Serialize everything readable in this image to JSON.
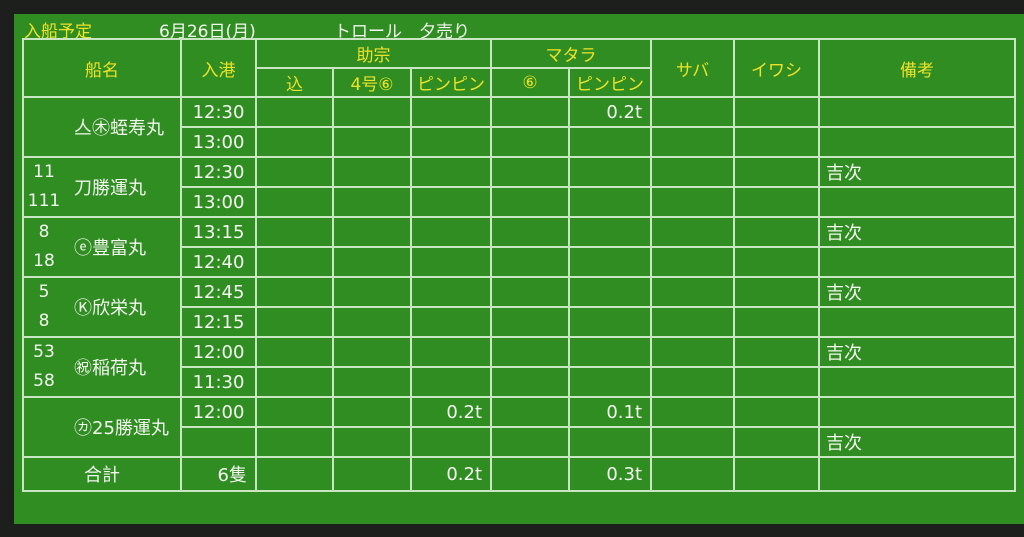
{
  "title": {
    "label": "入船予定",
    "date": "6月26日(月)",
    "type": "トロール　夕売り"
  },
  "headers": {
    "ship": "船名",
    "arrival": "入港",
    "sukesou": "助宗",
    "matara": "マタラ",
    "saba": "サバ",
    "iwashi": "イワシ",
    "remarks": "備考",
    "sub": [
      "込",
      "4号⑥",
      "ピンピン",
      "⑥",
      "ピンピン"
    ]
  },
  "ships": [
    {
      "codes": [
        "",
        ""
      ],
      "name": "亼㊍蛭寿丸",
      "times": [
        "12:30",
        "13:00"
      ],
      "cells": [
        [
          "",
          "",
          "",
          "",
          "0.2t",
          "",
          "",
          ""
        ],
        [
          "",
          "",
          "",
          "",
          "",
          "",
          "",
          ""
        ]
      ]
    },
    {
      "codes": [
        "11",
        "111"
      ],
      "name": "刀勝運丸",
      "times": [
        "12:30",
        "13:00"
      ],
      "cells": [
        [
          "",
          "",
          "",
          "",
          "",
          "",
          "",
          "吉次"
        ],
        [
          "",
          "",
          "",
          "",
          "",
          "",
          "",
          ""
        ]
      ]
    },
    {
      "codes": [
        "8",
        "18"
      ],
      "name": "ⓔ豊富丸",
      "times": [
        "13:15",
        "12:40"
      ],
      "cells": [
        [
          "",
          "",
          "",
          "",
          "",
          "",
          "",
          "吉次"
        ],
        [
          "",
          "",
          "",
          "",
          "",
          "",
          "",
          ""
        ]
      ]
    },
    {
      "codes": [
        "5",
        "8"
      ],
      "name": "Ⓚ欣栄丸",
      "times": [
        "12:45",
        "12:15"
      ],
      "cells": [
        [
          "",
          "",
          "",
          "",
          "",
          "",
          "",
          "吉次"
        ],
        [
          "",
          "",
          "",
          "",
          "",
          "",
          "",
          ""
        ]
      ]
    },
    {
      "codes": [
        "53",
        "58"
      ],
      "name": "㊗稲荷丸",
      "times": [
        "12:00",
        "11:30"
      ],
      "cells": [
        [
          "",
          "",
          "",
          "",
          "",
          "",
          "",
          "吉次"
        ],
        [
          "",
          "",
          "",
          "",
          "",
          "",
          "",
          ""
        ]
      ]
    },
    {
      "codes": [
        "",
        ""
      ],
      "name": "㋕25勝運丸",
      "times": [
        "12:00",
        ""
      ],
      "cells": [
        [
          "",
          "",
          "0.2t",
          "",
          "0.1t",
          "",
          "",
          ""
        ],
        [
          "",
          "",
          "",
          "",
          "",
          "",
          "",
          "吉次"
        ]
      ]
    }
  ],
  "total": {
    "label": "合計",
    "count": "6隻",
    "cells": [
      "",
      "",
      "0.2t",
      "",
      "0.3t",
      "",
      "",
      ""
    ]
  },
  "colors": {
    "board": "#2f8d22",
    "grid": "#c9e6c2",
    "header_text": "#ede22a",
    "text": "#f4f6f0"
  }
}
